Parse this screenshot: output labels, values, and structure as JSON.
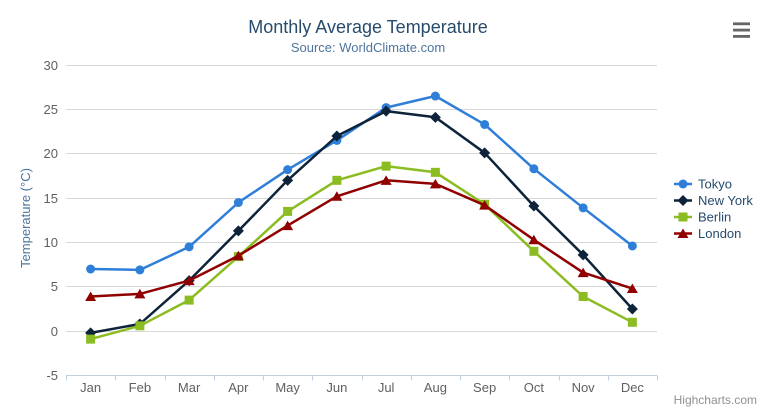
{
  "chart_data": {
    "type": "line",
    "title": "Monthly Average Temperature",
    "subtitle": "Source: WorldClimate.com",
    "xlabel": "",
    "ylabel": "Temperature (°C)",
    "categories": [
      "Jan",
      "Feb",
      "Mar",
      "Apr",
      "May",
      "Jun",
      "Jul",
      "Aug",
      "Sep",
      "Oct",
      "Nov",
      "Dec"
    ],
    "ylim": [
      -5,
      30
    ],
    "yticks": [
      -5,
      0,
      5,
      10,
      15,
      20,
      25,
      30
    ],
    "grid": true,
    "legend_position": "right",
    "series": [
      {
        "name": "Tokyo",
        "color": "#2f7ed8",
        "marker": "circle",
        "values": [
          7.0,
          6.9,
          9.5,
          14.5,
          18.2,
          21.5,
          25.2,
          26.5,
          23.3,
          18.3,
          13.9,
          9.6
        ]
      },
      {
        "name": "New York",
        "color": "#0d233a",
        "marker": "diamond",
        "values": [
          -0.2,
          0.8,
          5.7,
          11.3,
          17.0,
          22.0,
          24.8,
          24.1,
          20.1,
          14.1,
          8.6,
          2.5
        ]
      },
      {
        "name": "Berlin",
        "color": "#8bbc21",
        "marker": "square",
        "values": [
          -0.9,
          0.6,
          3.5,
          8.4,
          13.5,
          17.0,
          18.6,
          17.9,
          14.3,
          9.0,
          3.9,
          1.0
        ]
      },
      {
        "name": "London",
        "color": "#910000",
        "marker": "triangle",
        "values": [
          3.9,
          4.2,
          5.7,
          8.5,
          11.9,
          15.2,
          17.0,
          16.6,
          14.2,
          10.3,
          6.6,
          4.8
        ]
      }
    ]
  },
  "chart": {
    "credits": "Highcharts.com",
    "menu_icon": "hamburger-icon",
    "colors": {
      "title": "#274b6d",
      "subtitle": "#4d759e",
      "axis_labels": "#606060",
      "axis_title": "#4d759e",
      "legend_text": "#274b6d",
      "grid_line": "#d8d8d8",
      "axis_line": "#c0d0e0",
      "credits_text": "#909090",
      "background": "#ffffff",
      "menu_icon_color": "#666666"
    }
  }
}
